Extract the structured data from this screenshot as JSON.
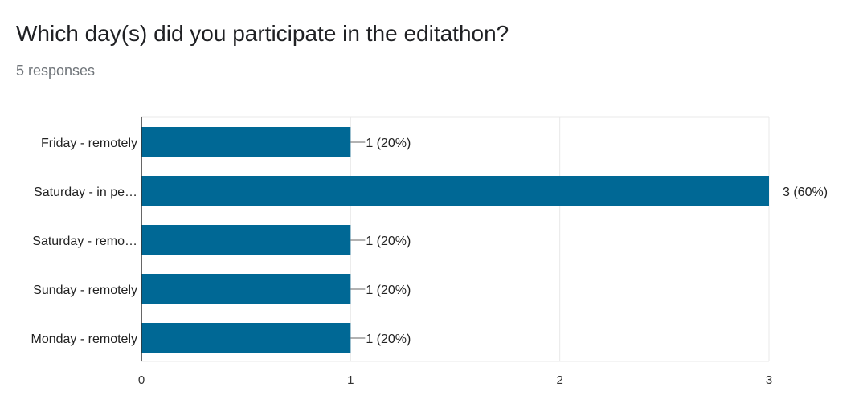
{
  "question": {
    "title": "Which day(s) did you participate in the editathon?",
    "responses": "5 responses"
  },
  "colors": {
    "bar": "#006895",
    "grid": "#e8e8e8",
    "axis": "#333333",
    "label_text": "#222222"
  },
  "chart_data": {
    "type": "bar",
    "orientation": "horizontal",
    "categories": [
      "Friday - remotely",
      "Saturday - in pe…",
      "Saturday - remo…",
      "Sunday - remotely",
      "Monday - remotely"
    ],
    "values": [
      1,
      3,
      1,
      1,
      1
    ],
    "data_labels": [
      "1 (20%)",
      "3 (60%)",
      "1 (20%)",
      "1 (20%)",
      "1 (20%)"
    ],
    "x_ticks": [
      0,
      1,
      2,
      3
    ],
    "xlim": [
      0,
      3
    ],
    "grid": true,
    "title": "",
    "xlabel": "",
    "ylabel": ""
  }
}
